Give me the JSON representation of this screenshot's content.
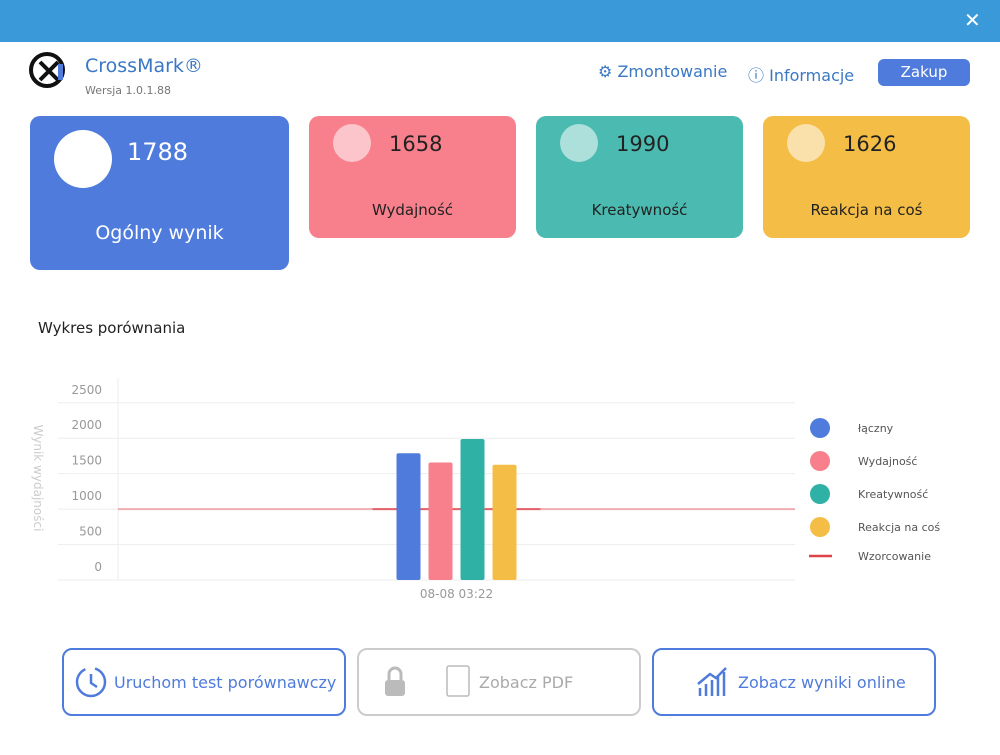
{
  "header": {
    "app_name": "CrossMark®",
    "version": "Wersja 1.0.1.88",
    "nav": [
      "Zmontowanie",
      "Informacje"
    ],
    "buy_button": "Zakup"
  },
  "cards": [
    {
      "value": 1788,
      "label": "Ogólny wynik"
    },
    {
      "value": 1658,
      "label": "Wydajność"
    },
    {
      "value": 1990,
      "label": "Kreatywność"
    },
    {
      "value": 1626,
      "label": "Reakcja na coś"
    }
  ],
  "chart": {
    "type": "bar",
    "title": "Wykres porównania",
    "y_label": "Wynik wydajności",
    "categories": [
      "08-08 03:22"
    ],
    "series": [
      {
        "name": "łączny",
        "color": "#4f7bdc",
        "values": [
          1788
        ]
      },
      {
        "name": "Wydajność",
        "color": "#f87f8c",
        "values": [
          1658
        ]
      },
      {
        "name": "Kreatywność",
        "color": "#2fb1a5",
        "values": [
          1990
        ]
      },
      {
        "name": "Reakcja na coś",
        "color": "#f4bd45",
        "values": [
          1626
        ]
      }
    ],
    "baseline": {
      "name": "Wzorcowanie",
      "color": "#e0424a",
      "value": 1000
    },
    "ylim": [
      0,
      2850
    ],
    "yticks": [
      0,
      500,
      1000,
      1500,
      2000,
      2500
    ],
    "grid": true,
    "legend": "right"
  },
  "buttons": [
    "Uruchom test porównawczy",
    "Zobacz PDF",
    "Zobacz wyniki online"
  ]
}
